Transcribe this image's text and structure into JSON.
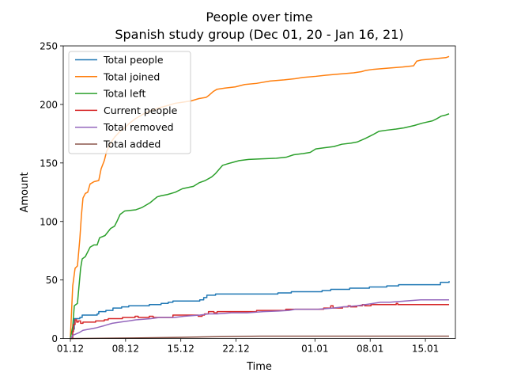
{
  "chart_data": {
    "type": "line",
    "title": "People over time",
    "subtitle": "Spanish study group (Dec 01, 20 - Jan 16, 21)",
    "xlabel": "Time",
    "ylabel": "Amount",
    "xlim": [
      -0.9,
      48.8
    ],
    "ylim": [
      0,
      250
    ],
    "xticks": [
      {
        "label": "01.12",
        "value": 0
      },
      {
        "label": "08.12",
        "value": 7
      },
      {
        "label": "15.12",
        "value": 14
      },
      {
        "label": "22.12",
        "value": 21
      },
      {
        "label": "01.01",
        "value": 31
      },
      {
        "label": "08.01",
        "value": 38
      },
      {
        "label": "15.01",
        "value": 45
      }
    ],
    "yticks": [
      0,
      50,
      100,
      150,
      200,
      250
    ],
    "legend_position": "top-left",
    "series": [
      {
        "name": "Total people",
        "color": "#1f77b4",
        "step": true,
        "points": [
          [
            0,
            0
          ],
          [
            0.3,
            8
          ],
          [
            0.5,
            17
          ],
          [
            1.2,
            18
          ],
          [
            1.5,
            20
          ],
          [
            3.4,
            21
          ],
          [
            3.6,
            23
          ],
          [
            4.5,
            24
          ],
          [
            5.4,
            26
          ],
          [
            6.5,
            27
          ],
          [
            7.4,
            28
          ],
          [
            10,
            29
          ],
          [
            11.5,
            30
          ],
          [
            12.4,
            31
          ],
          [
            13,
            32
          ],
          [
            16.4,
            33
          ],
          [
            16.9,
            35
          ],
          [
            17.3,
            37
          ],
          [
            18.4,
            38
          ],
          [
            26.3,
            39
          ],
          [
            28,
            40
          ],
          [
            31.9,
            41
          ],
          [
            33,
            42
          ],
          [
            35.4,
            43
          ],
          [
            37.9,
            44
          ],
          [
            40.1,
            45
          ],
          [
            41.6,
            46
          ],
          [
            46.9,
            48
          ],
          [
            48,
            49
          ]
        ]
      },
      {
        "name": "Total joined",
        "color": "#ff7f0e",
        "step": false,
        "points": [
          [
            0,
            0
          ],
          [
            0.3,
            45
          ],
          [
            0.6,
            60
          ],
          [
            0.9,
            62
          ],
          [
            1.2,
            85
          ],
          [
            1.4,
            105
          ],
          [
            1.6,
            120
          ],
          [
            1.9,
            124
          ],
          [
            2.2,
            125
          ],
          [
            2.5,
            132
          ],
          [
            3,
            134
          ],
          [
            3.6,
            135
          ],
          [
            3.9,
            145
          ],
          [
            4.3,
            152
          ],
          [
            4.6,
            160
          ],
          [
            5.2,
            168
          ],
          [
            5.6,
            172
          ],
          [
            6.3,
            177
          ],
          [
            6.9,
            180
          ],
          [
            7.5,
            184
          ],
          [
            8.3,
            188
          ],
          [
            9.3,
            192
          ],
          [
            10.3,
            195
          ],
          [
            11.2,
            197
          ],
          [
            12.3,
            199
          ],
          [
            13.3,
            201
          ],
          [
            14.3,
            202
          ],
          [
            15.3,
            203
          ],
          [
            16.3,
            205
          ],
          [
            17.2,
            206
          ],
          [
            17.6,
            208
          ],
          [
            18.1,
            211
          ],
          [
            18.6,
            213
          ],
          [
            19.6,
            214
          ],
          [
            20.9,
            215
          ],
          [
            22.1,
            217
          ],
          [
            23.6,
            218
          ],
          [
            25.3,
            220
          ],
          [
            27.1,
            221
          ],
          [
            28.5,
            222
          ],
          [
            29.4,
            223
          ],
          [
            31.1,
            224
          ],
          [
            32.4,
            225
          ],
          [
            34.1,
            226
          ],
          [
            35.9,
            227
          ],
          [
            36.9,
            228
          ],
          [
            37.4,
            229
          ],
          [
            38.4,
            230
          ],
          [
            40.2,
            231
          ],
          [
            42.1,
            232
          ],
          [
            43.5,
            233
          ],
          [
            43.9,
            237
          ],
          [
            44.5,
            238
          ],
          [
            46.1,
            239
          ],
          [
            47.6,
            240
          ],
          [
            48,
            241
          ]
        ]
      },
      {
        "name": "Total left",
        "color": "#2ca02c",
        "step": false,
        "points": [
          [
            0,
            0
          ],
          [
            0.3,
            10
          ],
          [
            0.5,
            28
          ],
          [
            0.9,
            30
          ],
          [
            1.1,
            45
          ],
          [
            1.3,
            60
          ],
          [
            1.5,
            68
          ],
          [
            1.9,
            70
          ],
          [
            2.2,
            74
          ],
          [
            2.5,
            78
          ],
          [
            3,
            80
          ],
          [
            3.4,
            80
          ],
          [
            3.7,
            86
          ],
          [
            4.4,
            88
          ],
          [
            5.1,
            94
          ],
          [
            5.6,
            96
          ],
          [
            5.9,
            100
          ],
          [
            6.3,
            106
          ],
          [
            6.9,
            109
          ],
          [
            8.3,
            110
          ],
          [
            9.1,
            112
          ],
          [
            10.1,
            116
          ],
          [
            11,
            121
          ],
          [
            11.5,
            122
          ],
          [
            12.3,
            123
          ],
          [
            13.3,
            125
          ],
          [
            14.2,
            128
          ],
          [
            15.6,
            130
          ],
          [
            16.3,
            133
          ],
          [
            17.1,
            135
          ],
          [
            17.9,
            138
          ],
          [
            18.4,
            141
          ],
          [
            19.3,
            148
          ],
          [
            20.3,
            150
          ],
          [
            21.4,
            152
          ],
          [
            22.6,
            153
          ],
          [
            24.3,
            153.5
          ],
          [
            26.1,
            154
          ],
          [
            27.4,
            155
          ],
          [
            28.3,
            157
          ],
          [
            29.5,
            158
          ],
          [
            30.4,
            159
          ],
          [
            31.1,
            162
          ],
          [
            32.2,
            163
          ],
          [
            33.4,
            164
          ],
          [
            34.4,
            166
          ],
          [
            35.6,
            167
          ],
          [
            36.4,
            168
          ],
          [
            37.4,
            171
          ],
          [
            38.3,
            174
          ],
          [
            39.1,
            177
          ],
          [
            40.1,
            178
          ],
          [
            41.3,
            179
          ],
          [
            42.3,
            180
          ],
          [
            43.6,
            182
          ],
          [
            44.6,
            184
          ],
          [
            45.9,
            186
          ],
          [
            46.5,
            188
          ],
          [
            47,
            190
          ],
          [
            47.6,
            191
          ],
          [
            48,
            192
          ]
        ]
      },
      {
        "name": "Current people",
        "color": "#d62728",
        "step": true,
        "points": [
          [
            0,
            0
          ],
          [
            0.3,
            6
          ],
          [
            0.4,
            12
          ],
          [
            0.6,
            16
          ],
          [
            0.8,
            14
          ],
          [
            1,
            15
          ],
          [
            1.3,
            13
          ],
          [
            1.6,
            14
          ],
          [
            2,
            14
          ],
          [
            3.2,
            15
          ],
          [
            4.3,
            16
          ],
          [
            4.8,
            17
          ],
          [
            6.2,
            17
          ],
          [
            6.6,
            18
          ],
          [
            7.7,
            18
          ],
          [
            8.2,
            19
          ],
          [
            8.6,
            18
          ],
          [
            9.6,
            18
          ],
          [
            10,
            19
          ],
          [
            10.5,
            18
          ],
          [
            12.5,
            18
          ],
          [
            13,
            20
          ],
          [
            15.7,
            20
          ],
          [
            16.2,
            19
          ],
          [
            16.7,
            20
          ],
          [
            17,
            21
          ],
          [
            17.5,
            23
          ],
          [
            18.2,
            22
          ],
          [
            18.6,
            23
          ],
          [
            23.4,
            23
          ],
          [
            23.6,
            24
          ],
          [
            26.4,
            24
          ],
          [
            27.3,
            25
          ],
          [
            31.9,
            25
          ],
          [
            32.1,
            26
          ],
          [
            33,
            28
          ],
          [
            33.3,
            26
          ],
          [
            34.5,
            27
          ],
          [
            35.2,
            28
          ],
          [
            35.5,
            27
          ],
          [
            36.3,
            28
          ],
          [
            37,
            29
          ],
          [
            37.3,
            28
          ],
          [
            37.9,
            28
          ],
          [
            38.1,
            29
          ],
          [
            41,
            29
          ],
          [
            41.3,
            30
          ],
          [
            41.5,
            29
          ],
          [
            48,
            29
          ]
        ]
      },
      {
        "name": "Total removed",
        "color": "#9467bd",
        "step": false,
        "points": [
          [
            0,
            0
          ],
          [
            0.4,
            3
          ],
          [
            1.1,
            5
          ],
          [
            1.6,
            7
          ],
          [
            2.4,
            8
          ],
          [
            3.2,
            9
          ],
          [
            4.3,
            11
          ],
          [
            5.3,
            13
          ],
          [
            6.3,
            14
          ],
          [
            7.4,
            15
          ],
          [
            8.3,
            16
          ],
          [
            10.2,
            17
          ],
          [
            11.3,
            18
          ],
          [
            13.2,
            18
          ],
          [
            14.4,
            19
          ],
          [
            16.4,
            20
          ],
          [
            17.5,
            21
          ],
          [
            18.6,
            21
          ],
          [
            20.4,
            22
          ],
          [
            22.4,
            22
          ],
          [
            24.5,
            23
          ],
          [
            26.4,
            23.5
          ],
          [
            27.7,
            24
          ],
          [
            28.5,
            25
          ],
          [
            31.4,
            25
          ],
          [
            33.3,
            26
          ],
          [
            34.6,
            27
          ],
          [
            36.3,
            28
          ],
          [
            37.4,
            29
          ],
          [
            38.4,
            30
          ],
          [
            39.3,
            31
          ],
          [
            40.5,
            31
          ],
          [
            42.4,
            32
          ],
          [
            44.4,
            33
          ],
          [
            46.3,
            33
          ],
          [
            48,
            33
          ]
        ]
      },
      {
        "name": "Total added",
        "color": "#8c564b",
        "step": false,
        "points": [
          [
            0,
            0
          ],
          [
            8,
            0.5
          ],
          [
            14,
            1
          ],
          [
            18,
            1.5
          ],
          [
            24,
            2
          ],
          [
            48,
            2
          ]
        ]
      }
    ]
  }
}
